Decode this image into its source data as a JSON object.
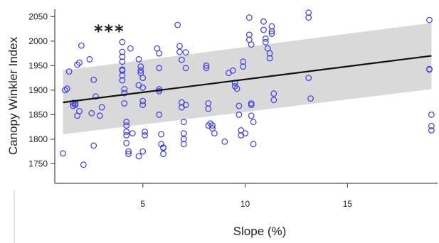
{
  "chart_data": {
    "type": "scatter",
    "title": "",
    "xlabel": "Slope (%)",
    "ylabel": "Canopy Winkler Index",
    "annotation": "***",
    "xlim": [
      0.7,
      19.4
    ],
    "ylim": [
      1710,
      2065
    ],
    "xticks": [
      5,
      10,
      15
    ],
    "yticks": [
      1750,
      1800,
      1850,
      1900,
      1950,
      2000,
      2050
    ],
    "grid": false,
    "legend": "none",
    "colors": {
      "points": "#3a3aeb",
      "fit": "#111111",
      "band": "#d9d9d9"
    },
    "fit_line": {
      "x": [
        1.1,
        19.1
      ],
      "y": [
        1875,
        1970
      ]
    },
    "confidence_band": {
      "x": [
        1.1,
        19.1
      ],
      "lower": [
        1810,
        1902
      ],
      "upper": [
        1940,
        2037
      ]
    },
    "points": {
      "x": [
        1.1,
        1.2,
        1.3,
        1.4,
        1.6,
        1.6,
        1.7,
        1.7,
        1.8,
        1.8,
        1.9,
        1.9,
        2.0,
        2.1,
        2.4,
        2.5,
        2.6,
        2.6,
        2.7,
        2.9,
        3.0,
        4.0,
        4.0,
        4.0,
        4.0,
        4.0,
        4.0,
        4.0,
        4.0,
        4.1,
        4.1,
        4.1,
        4.2,
        4.2,
        4.2,
        4.2,
        4.2,
        4.3,
        4.3,
        4.4,
        4.5,
        4.8,
        4.8,
        4.9,
        4.9,
        4.9,
        5.0,
        5.0,
        5.0,
        5.0,
        5.1,
        5.1,
        5.0,
        4.8,
        5.7,
        5.8,
        5.8,
        5.8,
        5.8,
        5.8,
        5.9,
        5.9,
        6.0,
        6.0,
        6.0,
        6.7,
        6.8,
        6.8,
        6.9,
        6.9,
        6.9,
        7.0,
        7.0,
        7.0,
        7.0,
        7.1,
        7.1,
        7.1,
        8.1,
        8.1,
        8.2,
        8.2,
        8.2,
        8.3,
        8.4,
        8.4,
        8.5,
        9.0,
        9.2,
        9.4,
        9.5,
        9.5,
        9.6,
        9.7,
        9.7,
        9.8,
        9.8,
        9.9,
        9.9,
        10.0,
        10.2,
        10.2,
        10.2,
        10.3,
        10.3,
        10.3,
        10.3,
        10.4,
        10.4,
        10.9,
        10.9,
        11.0,
        11.0,
        11.1,
        11.2,
        11.2,
        11.3,
        11.3,
        11.3,
        11.4,
        11.4,
        13.1,
        13.1,
        13.1,
        13.2,
        19.0,
        19.0,
        19.0,
        19.1,
        19.1,
        19.1
      ],
      "y": [
        1771,
        1900,
        1903,
        1938,
        1868,
        1874,
        1873,
        1870,
        1848,
        1952,
        1857,
        1956,
        1991,
        1748,
        1963,
        1853,
        1921,
        1787,
        1887,
        1848,
        1865,
        1998,
        1978,
        1968,
        1958,
        1942,
        1940,
        1930,
        1920,
        1902,
        1894,
        1873,
        1835,
        1828,
        1815,
        1808,
        1792,
        1775,
        1770,
        1985,
        1812,
        1963,
        1910,
        1948,
        1940,
        1935,
        1925,
        1905,
        1878,
        1870,
        1815,
        1808,
        1775,
        1765,
        1985,
        1975,
        1945,
        1902,
        1898,
        1850,
        1810,
        1790,
        1782,
        1783,
        1770,
        2033,
        1990,
        1978,
        1962,
        1875,
        1865,
        1835,
        1812,
        1800,
        1790,
        1977,
        1945,
        1870,
        1950,
        1945,
        1873,
        1862,
        1828,
        1832,
        1828,
        1822,
        1812,
        1795,
        1935,
        1940,
        1915,
        1908,
        1903,
        1868,
        1850,
        1818,
        1808,
        1958,
        1948,
        1812,
        2048,
        2013,
        2003,
        1993,
        1873,
        1870,
        1848,
        1835,
        1790,
        2040,
        2023,
        2005,
        1998,
        1985,
        1975,
        1965,
        2030,
        2020,
        2015,
        1893,
        1880,
        2058,
        2048,
        1925,
        1883,
        2043,
        1943,
        1942,
        1850,
        1827,
        1818
      ]
    }
  }
}
